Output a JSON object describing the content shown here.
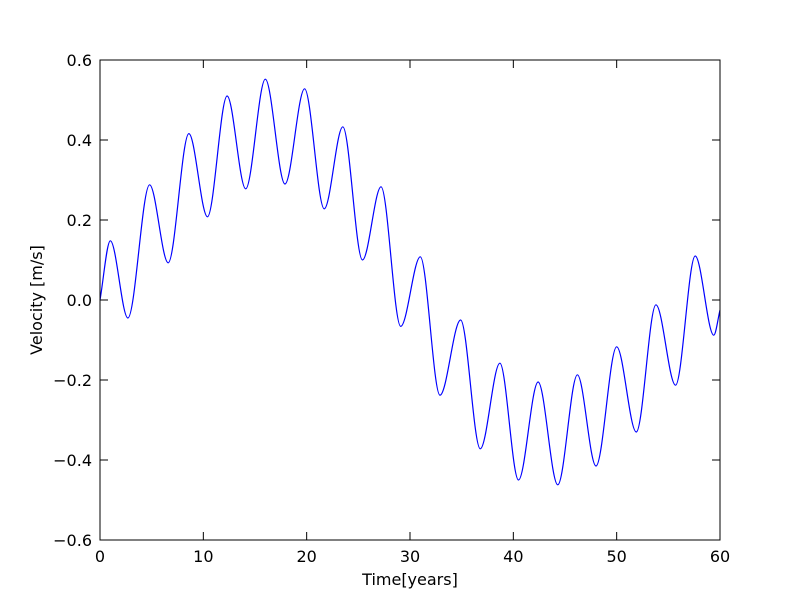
{
  "chart_data": {
    "type": "line",
    "title": "",
    "xlabel": "Time[years]",
    "ylabel": "Velocity [m/s]",
    "xlim": [
      0,
      60
    ],
    "ylim": [
      -0.6,
      0.6
    ],
    "x_ticks": [
      0,
      10,
      20,
      30,
      40,
      50,
      60
    ],
    "y_ticks": [
      -0.6,
      -0.4,
      -0.2,
      0.0,
      0.2,
      0.4,
      0.6
    ],
    "x_tick_labels": [
      "0",
      "10",
      "20",
      "30",
      "40",
      "50",
      "60"
    ],
    "y_tick_labels": [
      "−0.6",
      "−0.4",
      "−0.2",
      "0.0",
      "0.2",
      "0.4",
      "0.6"
    ],
    "grid": false,
    "legend": "none",
    "series": [
      {
        "color": "#0000ff",
        "x": [
          0,
          1,
          2.7,
          4.8,
          6.6,
          8.6,
          10.4,
          12.3,
          14.1,
          16.0,
          17.9,
          19.8,
          21.7,
          23.5,
          25.4,
          27.2,
          29.1,
          31.0,
          32.9,
          34.9,
          36.8,
          38.7,
          40.5,
          42.4,
          44.3,
          46.2,
          48.0,
          50.0,
          51.9,
          53.8,
          55.7,
          57.6,
          59.4,
          60
        ],
        "y": [
          0.0,
          0.148,
          -0.045,
          0.288,
          0.093,
          0.416,
          0.208,
          0.51,
          0.278,
          0.552,
          0.29,
          0.528,
          0.228,
          0.433,
          0.1,
          0.283,
          -0.066,
          0.108,
          -0.238,
          -0.05,
          -0.372,
          -0.158,
          -0.45,
          -0.205,
          -0.462,
          -0.187,
          -0.415,
          -0.117,
          -0.33,
          -0.012,
          -0.213,
          0.11,
          -0.088,
          -0.025
        ]
      }
    ]
  }
}
